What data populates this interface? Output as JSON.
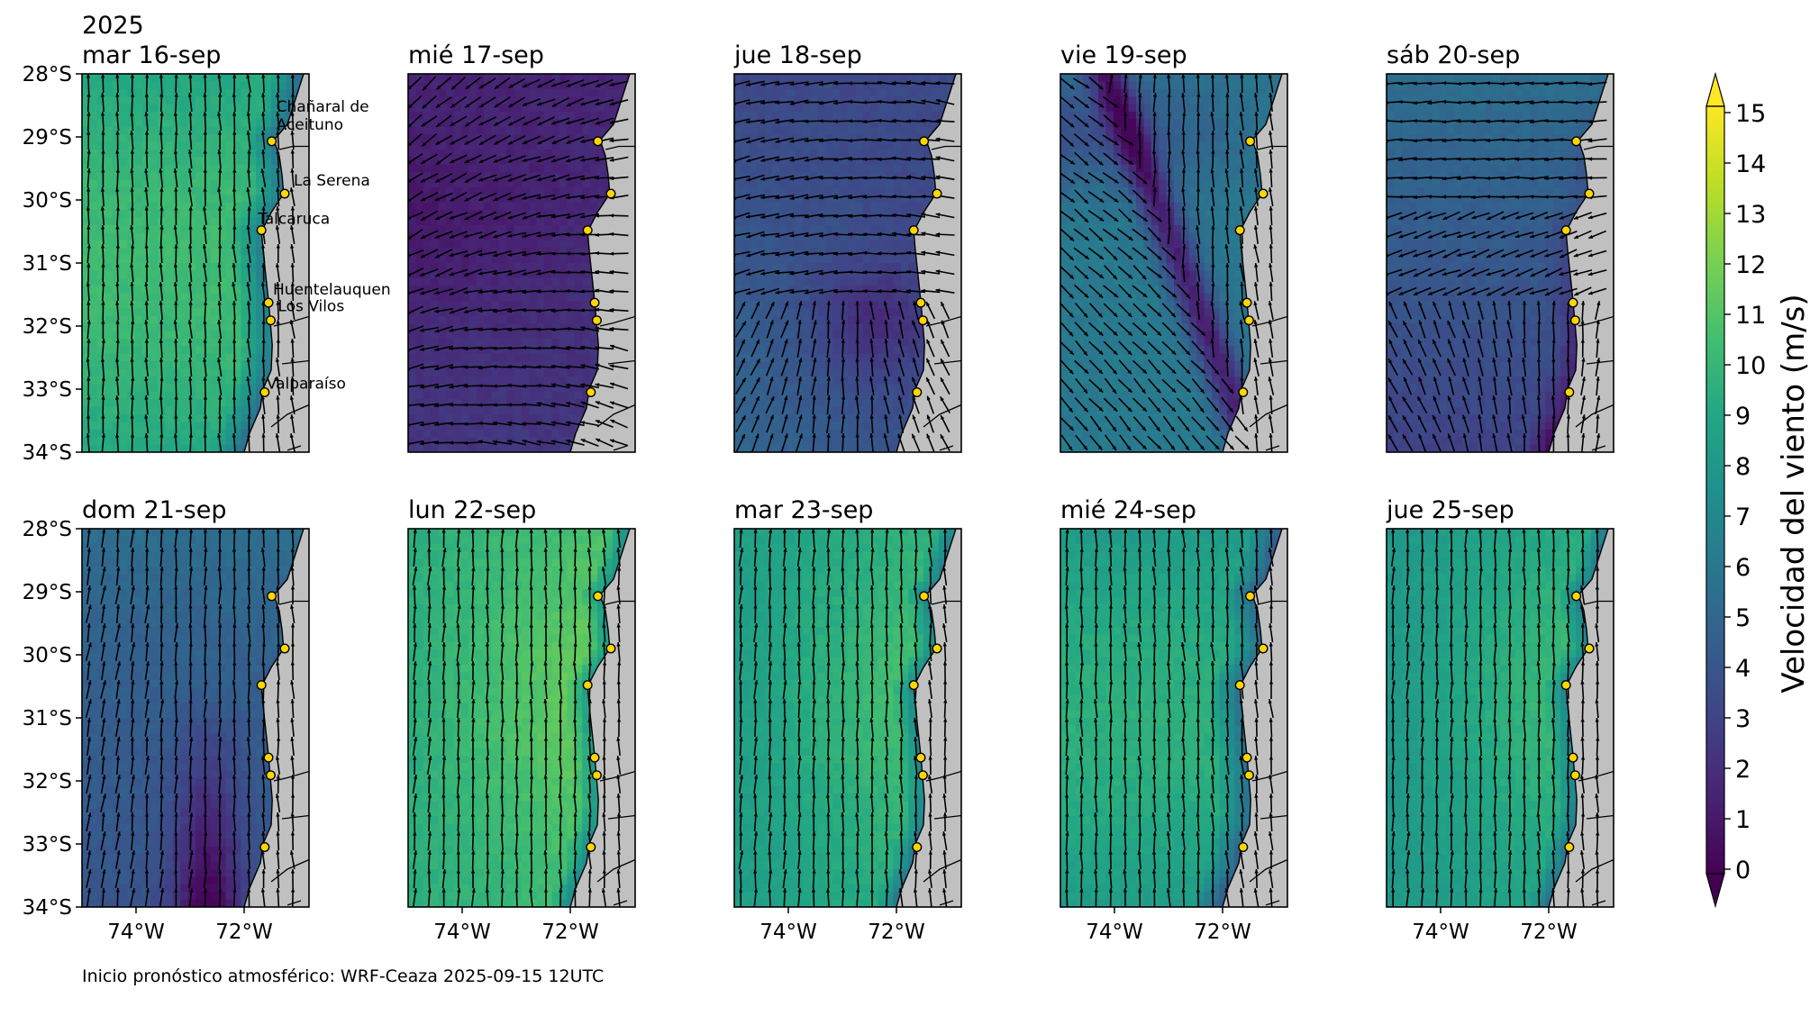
{
  "figure": {
    "year_label": "2025",
    "footer": "Inicio pronóstico atmosférico: WRF-Ceaza 2025-09-15 12UTC",
    "lat_ticks": [
      "28°S",
      "29°S",
      "30°S",
      "31°S",
      "32°S",
      "33°S",
      "34°S"
    ],
    "lon_ticks": [
      "74°W",
      "72°W"
    ]
  },
  "panels": [
    {
      "title": "mar 16-sep",
      "regime": "southerly",
      "base": 9.0,
      "coast_low": true
    },
    {
      "title": "mié 17-sep",
      "regime": "calm",
      "base": 1.6
    },
    {
      "title": "jue 18-sep",
      "regime": "mixed",
      "base": 3.3
    },
    {
      "title": "vie 19-sep",
      "regime": "front",
      "base": 5.6
    },
    {
      "title": "sáb 20-sep",
      "regime": "westerly",
      "base": 4.8
    },
    {
      "title": "dom 21-sep",
      "regime": "weak_southerly",
      "base": 5.0
    },
    {
      "title": "lun 22-sep",
      "regime": "strong_southerly",
      "base": 10.6
    },
    {
      "title": "mar 23-sep",
      "regime": "strong_southerly",
      "base": 9.6
    },
    {
      "title": "mié 24-sep",
      "regime": "southerly",
      "base": 8.2
    },
    {
      "title": "jue 25-sep",
      "regime": "strong_southerly",
      "base": 9.2
    }
  ],
  "cities": [
    {
      "name": "Chañaral de\nAceituno",
      "lat": -29.07,
      "lon": -71.49
    },
    {
      "name": "La Serena",
      "lat": -29.9,
      "lon": -71.25
    },
    {
      "name": "Talcaruca",
      "lat": -30.48,
      "lon": -71.68
    },
    {
      "name": "Huentelauquen",
      "lat": -31.63,
      "lon": -71.55
    },
    {
      "name": "Los Vilos",
      "lat": -31.91,
      "lon": -71.51
    },
    {
      "name": "Valparaíso",
      "lat": -33.05,
      "lon": -71.62
    }
  ],
  "colorbar": {
    "label": "Velocidad del viento (m/s)",
    "ticks": [
      "0",
      "1",
      "2",
      "3",
      "4",
      "5",
      "6",
      "7",
      "8",
      "9",
      "10",
      "11",
      "12",
      "13",
      "14",
      "15"
    ],
    "min": 0,
    "max": 15,
    "extend": "both",
    "colormap": "viridis"
  },
  "colors": {
    "land": "#c0c0c0",
    "marker_fill": "#ffd700",
    "arrow": "#000000"
  }
}
